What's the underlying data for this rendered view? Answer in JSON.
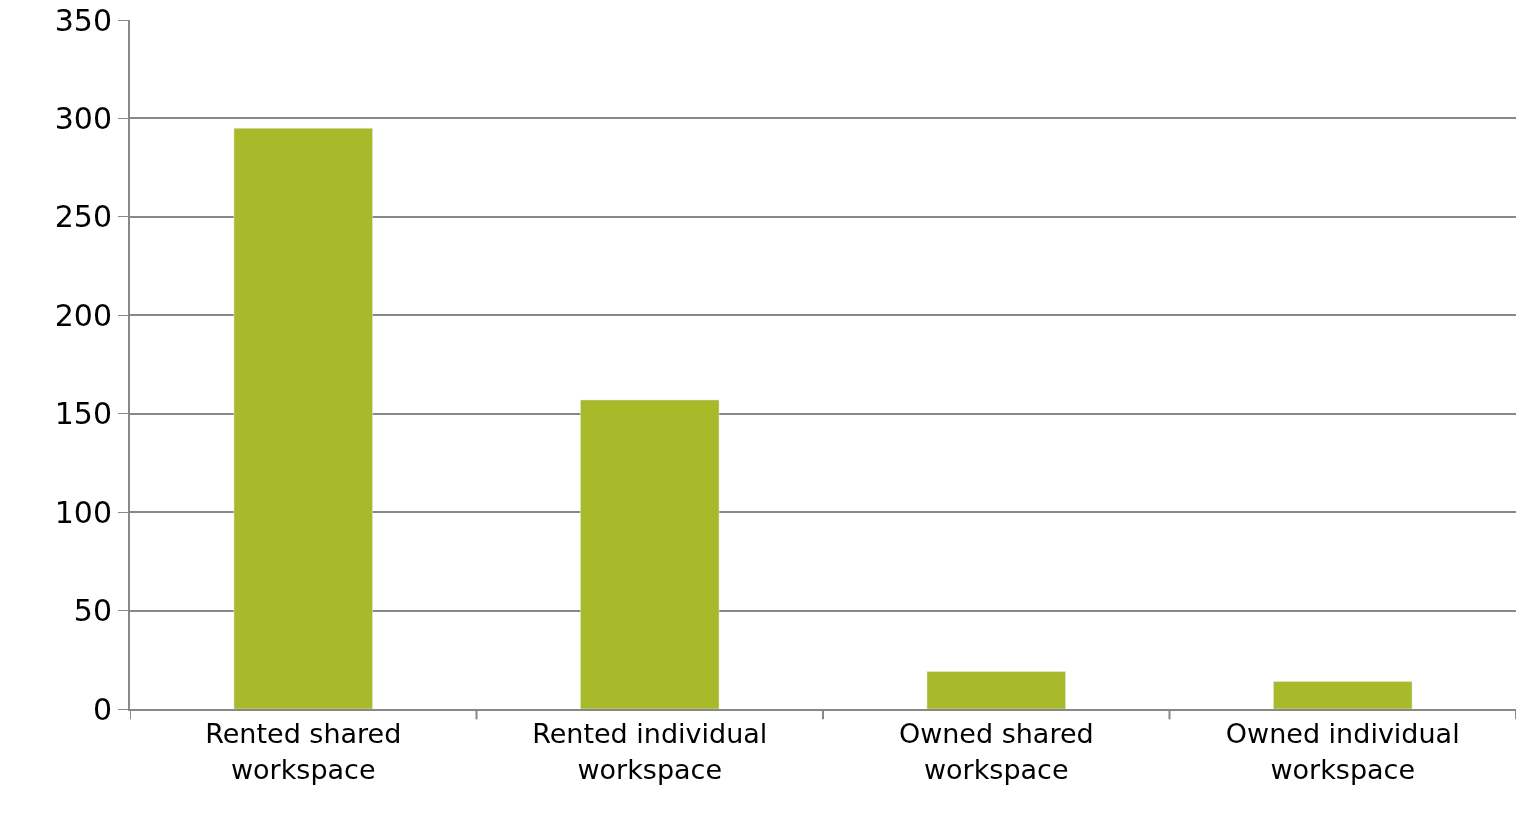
{
  "chart_data": {
    "type": "bar",
    "categories": [
      "Rented shared workspace",
      "Rented individual workspace",
      "Owned shared workspace",
      "Owned individual workspace"
    ],
    "values": [
      295,
      157,
      19,
      14
    ],
    "color": "#a8b92a",
    "ylim": [
      0,
      350
    ],
    "yticks": [
      0,
      50,
      100,
      150,
      200,
      250,
      300,
      350
    ],
    "grid": "y",
    "legend": false
  }
}
